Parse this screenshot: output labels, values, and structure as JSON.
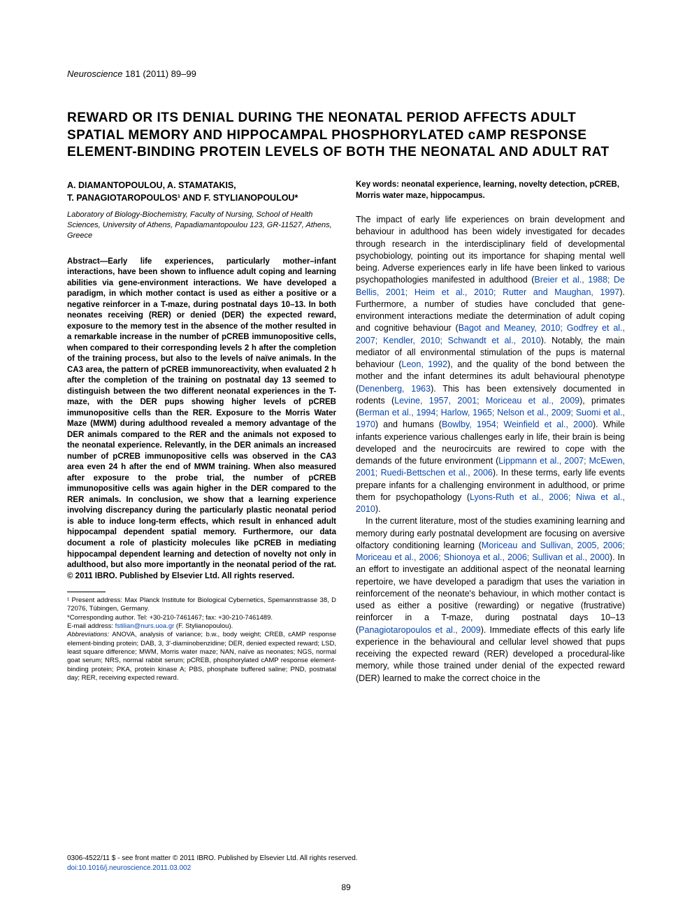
{
  "journal": {
    "name": "Neuroscience",
    "issue_pages": "181 (2011) 89–99"
  },
  "title": "REWARD OR ITS DENIAL DURING THE NEONATAL PERIOD AFFECTS ADULT SPATIAL MEMORY AND HIPPOCAMPAL PHOSPHORYLATED cAMP RESPONSE ELEMENT-BINDING PROTEIN LEVELS OF BOTH THE NEONATAL AND ADULT RAT",
  "authors_line1": "A. DIAMANTOPOULOU, A. STAMATAKIS,",
  "authors_line2": "T. PANAGIOTAROPOULOS¹ AND F. STYLIANOPOULOU*",
  "affiliation": "Laboratory of Biology-Biochemistry, Faculty of Nursing, School of Health Sciences, University of Athens, Papadiamantopoulou 123, GR-11527, Athens, Greece",
  "abstract": "Abstract—Early life experiences, particularly mother–infant interactions, have been shown to influence adult coping and learning abilities via gene-environment interactions. We have developed a paradigm, in which mother contact is used as either a positive or a negative reinforcer in a T-maze, during postnatal days 10–13. In both neonates receiving (RER) or denied (DER) the expected reward, exposure to the memory test in the absence of the mother resulted in a remarkable increase in the number of pCREB immunopositive cells, when compared to their corresponding levels 2 h after the completion of the training process, but also to the levels of naïve animals. In the CA3 area, the pattern of pCREB immunoreactivity, when evaluated 2 h after the completion of the training on postnatal day 13 seemed to distinguish between the two different neonatal experiences in the T-maze, with the DER pups showing higher levels of pCREB immunopositive cells than the RER. Exposure to the Morris Water Maze (MWM) during adulthood revealed a memory advantage of the DER animals compared to the RER and the animals not exposed to the neonatal experience. Relevantly, in the DER animals an increased number of pCREB immunopositive cells was observed in the CA3 area even 24 h after the end of MWM training. When also measured after exposure to the probe trial, the number of pCREB immunopositive cells was again higher in the DER compared to the RER animals. In conclusion, we show that a learning experience involving discrepancy during the particularly plastic neonatal period is able to induce long-term effects, which result in enhanced adult hippocampal dependent spatial memory. Furthermore, our data document a role of plasticity molecules like pCREB in mediating hippocampal dependent learning and detection of novelty not only in adulthood, but also more importantly in the neonatal period of the rat. © 2011 IBRO. Published by Elsevier Ltd. All rights reserved.",
  "footnotes": {
    "present_address": "¹ Present address: Max Planck Institute for Biological Cybernetics, Spemannstrasse 38, D 72076, Tübingen, Germany.",
    "corresponding": "*Corresponding author. Tel: +30-210-7461467; fax: +30-210-7461489.",
    "email_label": "E-mail address: ",
    "email": "fstilian@nurs.uoa.gr",
    "email_after": " (F. Stylianopoulou).",
    "abbrev_label": "Abbreviations:",
    "abbrev": " ANOVA, analysis of variance; b.w., body weight; CREB, cAMP response element-binding protein; DAB, 3, 3'-diaminobenzidine; DER, denied expected reward; LSD, least square difference; MWM, Morris water maze; NAN, naïve as neonates; NGS, normal goat serum; NRS, normal rabbit serum; pCREB, phosphorylated cAMP response element-binding protein; PKA, protein kinase A; PBS, phosphate buffered saline; PND, postnatal day; RER, receiving expected reward."
  },
  "keywords": "Key words: neonatal experience, learning, novelty detection, pCREB, Morris water maze, hippocampus.",
  "body": {
    "p1a": "The impact of early life experiences on brain development and behaviour in adulthood has been widely investigated for decades through research in the interdisciplinary field of developmental psychobiology, pointing out its importance for shaping mental well being. Adverse experiences early in life have been linked to various psychopathologies manifested in adulthood (",
    "c1": "Breier et al., 1988; De Bellis, 2001; Heim et al., 2010; Rutter and Maughan, 1997",
    "p1b": "). Furthermore, a number of studies have concluded that gene-environment interactions mediate the determination of adult coping and cognitive behaviour (",
    "c2": "Bagot and Meaney, 2010; Godfrey et al., 2007; Kendler, 2010; Schwandt et al., 2010",
    "p1c": "). Notably, the main mediator of all environmental stimulation of the pups is maternal behaviour (",
    "c3": "Leon, 1992",
    "p1d": "), and the quality of the bond between the mother and the infant determines its adult behavioural phenotype (",
    "c4": "Denenberg, 1963",
    "p1e": "). This has been extensively documented in rodents (",
    "c5": "Levine, 1957, 2001; Moriceau et al., 2009",
    "p1f": "), primates (",
    "c6": "Berman et al., 1994; Harlow, 1965; Nelson et al., 2009; Suomi et al., 1970",
    "p1g": ") and humans (",
    "c7": "Bowlby, 1954; Weinfield et al., 2000",
    "p1h": "). While infants experience various challenges early in life, their brain is being developed and the neurocircuits are rewired to cope with the demands of the future environment (",
    "c8": "Lippmann et al., 2007; McEwen, 2001; Ruedi-Bettschen et al., 2006",
    "p1i": "). In these terms, early life events prepare infants for a challenging environment in adulthood, or prime them for psychopathology (",
    "c9": "Lyons-Ruth et al., 2006; Niwa et al., 2010",
    "p1j": ").",
    "p2a": "In the current literature, most of the studies examining learning and memory during early postnatal development are focusing on aversive olfactory conditioning learning (",
    "c10": "Moriceau and Sullivan, 2005, 2006; Moriceau et al., 2006; Shionoya et al., 2006; Sullivan et al., 2000",
    "p2b": "). In an effort to investigate an additional aspect of the neonatal learning repertoire, we have developed a paradigm that uses the variation in reinforcement of the neonate's behaviour, in which mother contact is used as either a positive (rewarding) or negative (frustrative) reinforcer in a T-maze, during postnatal days 10–13 (",
    "c11": "Panagiotaropoulos et al., 2009",
    "p2c": "). Immediate effects of this early life experience in the behavioural and cellular level showed that pups receiving the expected reward (RER) developed a procedural-like memory, while those trained under denial of the expected reward (DER) learned to make the correct choice in the"
  },
  "copyright": "0306-4522/11 $ - see front matter © 2011 IBRO. Published by Elsevier Ltd. All rights reserved.",
  "doi": "doi:10.1016/j.neuroscience.2011.03.002",
  "page_number": "89"
}
